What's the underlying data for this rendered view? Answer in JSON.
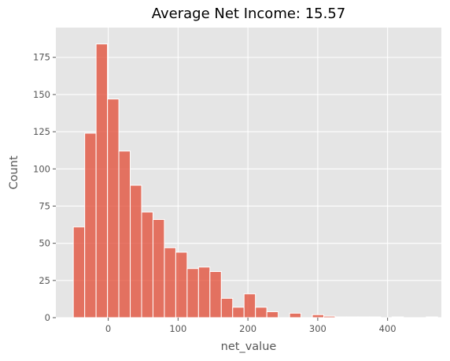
{
  "chart_data": {
    "type": "bar",
    "title": "Average Net Income: 15.57",
    "xlabel": "net_value",
    "ylabel": "Count",
    "bin_start": -50,
    "bin_width": 16.3,
    "values": [
      61,
      124,
      184,
      147,
      112,
      89,
      71,
      66,
      47,
      44,
      33,
      34,
      31,
      13,
      7,
      16,
      7,
      4,
      0,
      3,
      0,
      2,
      1,
      0.5,
      0.5,
      0.5,
      0.5,
      0,
      0.5,
      0,
      0,
      0.5
    ],
    "xlim": [
      -75,
      477
    ],
    "ylim": [
      0,
      195
    ],
    "xticks": [
      0,
      100,
      200,
      300,
      400
    ],
    "yticks": [
      0,
      25,
      50,
      75,
      100,
      125,
      150,
      175
    ],
    "grid": true,
    "bar_color": "#E24A33",
    "bar_edge_color": "#ffffff",
    "background_color": "#E5E5E5",
    "grid_color": "#ffffff"
  }
}
